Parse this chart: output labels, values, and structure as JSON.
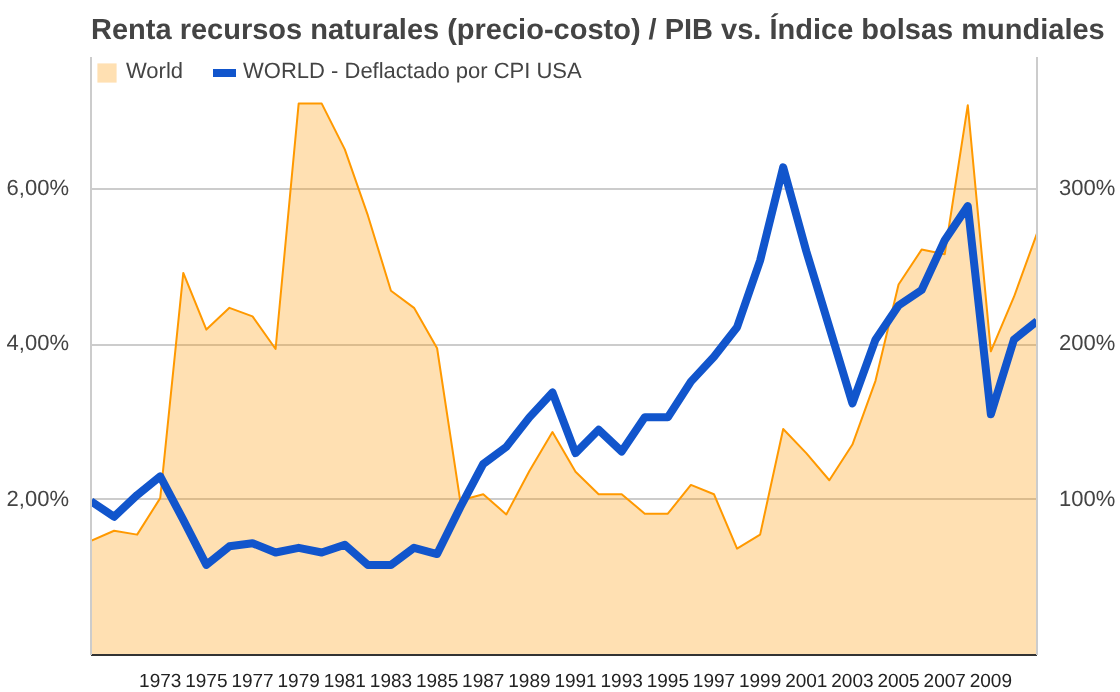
{
  "chart_data": {
    "type": "area",
    "title": "Renta recursos naturales (precio-costo) / PIB vs. Índice bolsas mundiales",
    "x": [
      1970,
      1971,
      1972,
      1973,
      1974,
      1975,
      1976,
      1977,
      1978,
      1979,
      1980,
      1981,
      1982,
      1983,
      1984,
      1985,
      1986,
      1987,
      1988,
      1989,
      1990,
      1991,
      1992,
      1993,
      1994,
      1995,
      1996,
      1997,
      1998,
      1999,
      2000,
      2001,
      2002,
      2003,
      2004,
      2005,
      2006,
      2007,
      2008,
      2009,
      2010,
      2011
    ],
    "series": [
      {
        "name": "World",
        "color": "#ff9900",
        "values": [
          1.47,
          1.6,
          1.55,
          2.02,
          4.92,
          4.19,
          4.47,
          4.36,
          3.94,
          7.1,
          7.1,
          6.51,
          5.66,
          4.69,
          4.47,
          3.95,
          1.99,
          2.07,
          1.81,
          2.37,
          2.87,
          2.36,
          2.07,
          2.07,
          1.82,
          1.82,
          2.19,
          2.07,
          1.37,
          1.55,
          2.91,
          2.6,
          2.25,
          2.71,
          3.53,
          4.77,
          5.22,
          5.16,
          7.08,
          3.91,
          4.61,
          5.43
        ]
      },
      {
        "name": "WORLD - Deflactado por CPI USA",
        "type": "line",
        "axis": "y2",
        "color": "#1155cc",
        "values": [
          99,
          89,
          103,
          115,
          87,
          58,
          70,
          72,
          66,
          69,
          66,
          71,
          58,
          58,
          69,
          65,
          95,
          123,
          134,
          153,
          169,
          130,
          145,
          131,
          153,
          153,
          176,
          192,
          211,
          254,
          314,
          260,
          211,
          162,
          203,
          225,
          235,
          267,
          289,
          155,
          203,
          215
        ]
      }
    ],
    "xlim": [
      1970,
      2011
    ],
    "xticks": [
      1973,
      1975,
      1977,
      1979,
      1981,
      1983,
      1985,
      1987,
      1989,
      1991,
      1993,
      1995,
      1997,
      1999,
      2001,
      2003,
      2005,
      2007,
      2009
    ],
    "ylim": [
      0,
      7.7
    ],
    "yticks": [
      {
        "value": 2,
        "label": "2,00%"
      },
      {
        "value": 4,
        "label": "4,00%"
      },
      {
        "value": 6,
        "label": "6,00%"
      }
    ],
    "y2lim": [
      0,
      385
    ],
    "y2ticks": [
      {
        "value": 100,
        "label": "100%"
      },
      {
        "value": 200,
        "label": "200%"
      },
      {
        "value": 300,
        "label": "300%"
      }
    ],
    "grid": "y",
    "legend": "top"
  }
}
